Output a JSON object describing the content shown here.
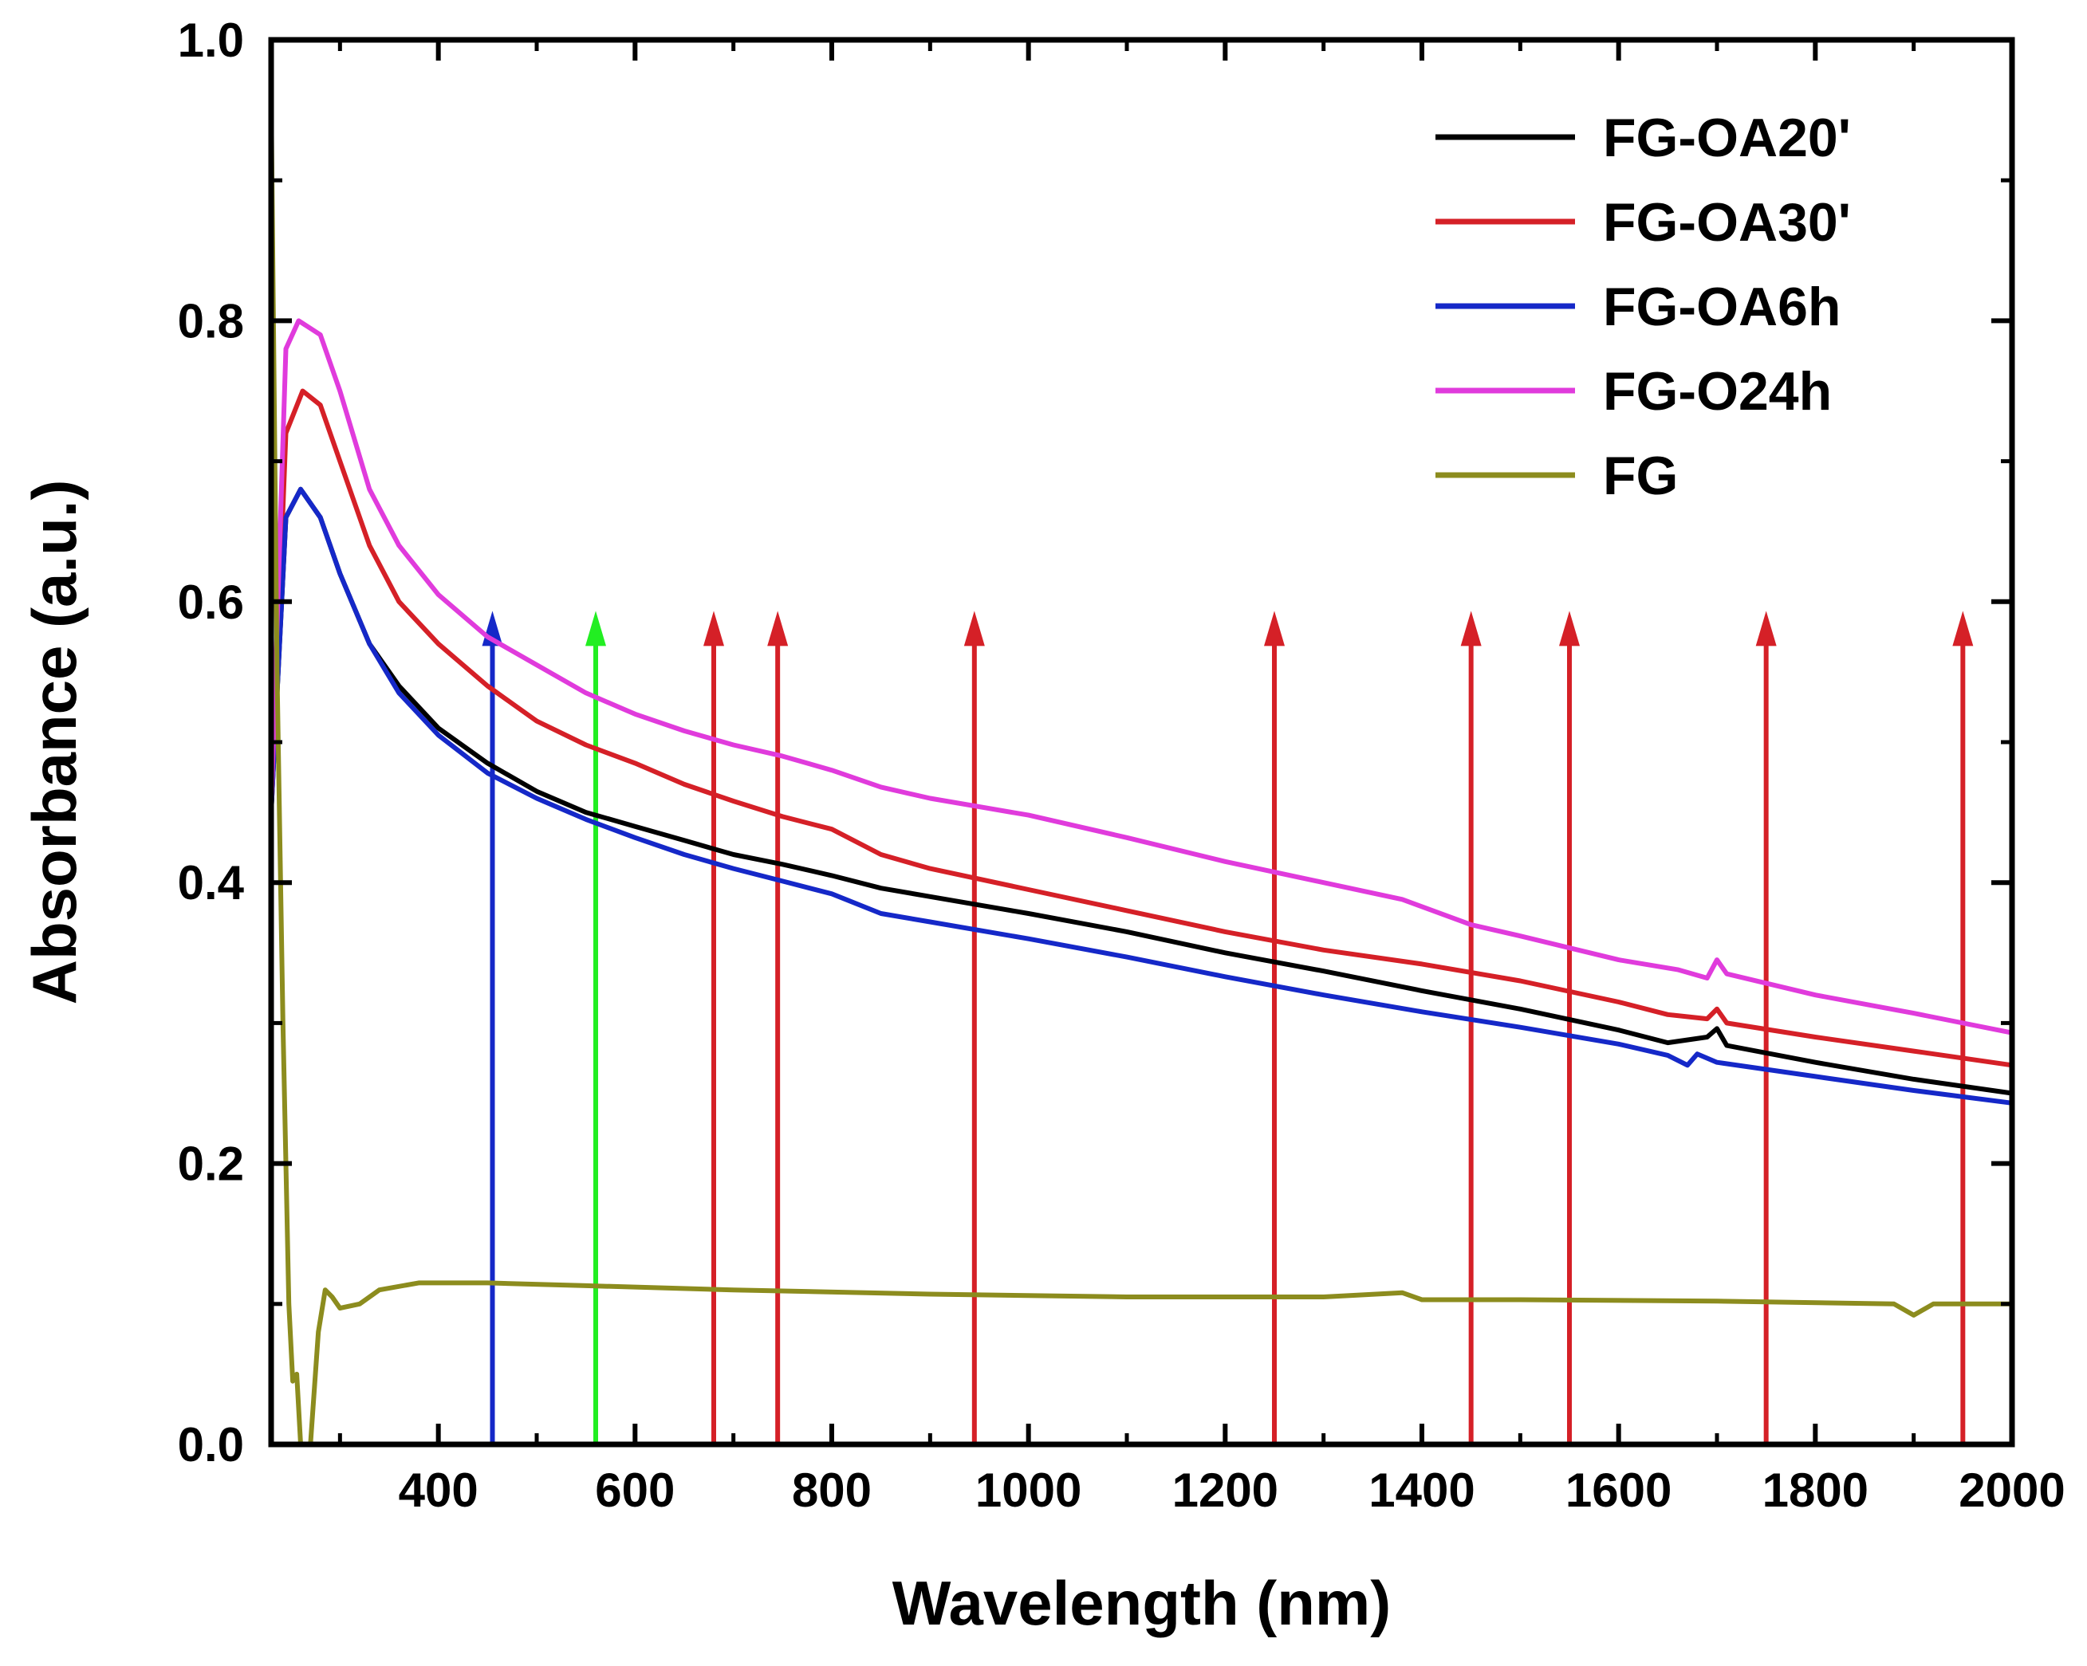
{
  "chart_data": {
    "type": "line",
    "title": "",
    "xlabel": "Wavelength (nm)",
    "ylabel": "Absorbance (a.u.)",
    "xlim": [
      230,
      2000
    ],
    "ylim": [
      0.0,
      1.0
    ],
    "x_ticks": [
      400,
      600,
      800,
      1000,
      1200,
      1400,
      1600,
      1800,
      2000
    ],
    "x_tick_labels": [
      "400",
      "600",
      "800",
      "1000",
      "1200",
      "1400",
      "1600",
      "1800",
      "2000"
    ],
    "y_ticks": [
      0.0,
      0.2,
      0.4,
      0.6,
      0.8,
      1.0
    ],
    "y_tick_labels": [
      "0.0",
      "0.2",
      "0.4",
      "0.6",
      "0.8",
      "1.0"
    ],
    "grid": false,
    "legend_position": "top-right",
    "series": [
      {
        "name": "FG-OA20'",
        "color": "#000000",
        "x": [
          230,
          245,
          260,
          280,
          300,
          330,
          360,
          400,
          450,
          500,
          550,
          600,
          650,
          700,
          750,
          800,
          850,
          900,
          1000,
          1100,
          1200,
          1300,
          1400,
          1500,
          1600,
          1650,
          1690,
          1700,
          1710,
          1800,
          1900,
          2000
        ],
        "y": [
          0.45,
          0.66,
          0.68,
          0.66,
          0.62,
          0.57,
          0.54,
          0.51,
          0.485,
          0.465,
          0.45,
          0.44,
          0.43,
          0.42,
          0.413,
          0.405,
          0.396,
          0.39,
          0.378,
          0.365,
          0.35,
          0.337,
          0.323,
          0.31,
          0.295,
          0.286,
          0.29,
          0.296,
          0.284,
          0.272,
          0.26,
          0.25
        ]
      },
      {
        "name": "FG-OA30'",
        "color": "#d52027",
        "x": [
          230,
          245,
          262,
          280,
          300,
          330,
          360,
          400,
          450,
          500,
          550,
          600,
          650,
          700,
          750,
          800,
          850,
          900,
          1000,
          1100,
          1200,
          1300,
          1400,
          1500,
          1600,
          1650,
          1690,
          1700,
          1710,
          1800,
          1900,
          2000
        ],
        "y": [
          0.45,
          0.72,
          0.75,
          0.74,
          0.7,
          0.64,
          0.6,
          0.57,
          0.54,
          0.515,
          0.498,
          0.485,
          0.47,
          0.458,
          0.447,
          0.438,
          0.42,
          0.41,
          0.395,
          0.38,
          0.365,
          0.352,
          0.342,
          0.33,
          0.315,
          0.306,
          0.303,
          0.31,
          0.3,
          0.29,
          0.28,
          0.27
        ]
      },
      {
        "name": "FG-OA6h",
        "color": "#1528c8",
        "x": [
          230,
          245,
          260,
          280,
          300,
          330,
          360,
          400,
          450,
          500,
          550,
          600,
          650,
          700,
          750,
          800,
          850,
          900,
          1000,
          1100,
          1200,
          1300,
          1400,
          1500,
          1600,
          1650,
          1670,
          1680,
          1700,
          1800,
          1900,
          2000
        ],
        "y": [
          0.45,
          0.66,
          0.68,
          0.66,
          0.62,
          0.57,
          0.535,
          0.505,
          0.478,
          0.46,
          0.445,
          0.432,
          0.42,
          0.41,
          0.401,
          0.392,
          0.378,
          0.372,
          0.36,
          0.347,
          0.333,
          0.32,
          0.308,
          0.297,
          0.285,
          0.277,
          0.27,
          0.278,
          0.272,
          0.262,
          0.252,
          0.243
        ]
      },
      {
        "name": "FG-O24h",
        "color": "#e03bdc",
        "x": [
          230,
          245,
          258,
          280,
          300,
          330,
          360,
          400,
          450,
          500,
          550,
          600,
          650,
          700,
          750,
          800,
          850,
          900,
          1000,
          1100,
          1200,
          1300,
          1380,
          1450,
          1500,
          1600,
          1660,
          1690,
          1700,
          1710,
          1800,
          1900,
          2000
        ],
        "y": [
          0.45,
          0.78,
          0.8,
          0.79,
          0.75,
          0.68,
          0.64,
          0.605,
          0.575,
          0.555,
          0.535,
          0.52,
          0.508,
          0.498,
          0.49,
          0.48,
          0.468,
          0.46,
          0.448,
          0.432,
          0.415,
          0.4,
          0.388,
          0.37,
          0.362,
          0.345,
          0.338,
          0.332,
          0.345,
          0.335,
          0.32,
          0.307,
          0.293
        ]
      },
      {
        "name": "FG",
        "color": "#8c8c1e",
        "x": [
          230,
          236,
          242,
          248,
          252,
          256,
          260,
          265,
          270,
          278,
          285,
          292,
          300,
          320,
          340,
          380,
          450,
          550,
          700,
          900,
          1100,
          1300,
          1380,
          1400,
          1500,
          1700,
          1880,
          1900,
          1920,
          2000
        ],
        "y": [
          0.96,
          0.55,
          0.3,
          0.1,
          0.045,
          0.05,
          0.0,
          0.0,
          0.0,
          0.08,
          0.11,
          0.105,
          0.097,
          0.1,
          0.11,
          0.115,
          0.115,
          0.113,
          0.11,
          0.107,
          0.105,
          0.105,
          0.108,
          0.103,
          0.103,
          0.102,
          0.1,
          0.092,
          0.1,
          0.1
        ]
      }
    ],
    "annotations": [
      {
        "type": "arrow",
        "x": 455,
        "y_start": 0.0,
        "y_end": 0.59,
        "color": "#1528c8"
      },
      {
        "type": "arrow",
        "x": 560,
        "y_start": 0.0,
        "y_end": 0.59,
        "color": "#22ee22"
      },
      {
        "type": "arrow",
        "x": 680,
        "y_start": 0.0,
        "y_end": 0.59,
        "color": "#d52027"
      },
      {
        "type": "arrow",
        "x": 745,
        "y_start": 0.0,
        "y_end": 0.59,
        "color": "#d52027"
      },
      {
        "type": "arrow",
        "x": 945,
        "y_start": 0.0,
        "y_end": 0.59,
        "color": "#d52027"
      },
      {
        "type": "arrow",
        "x": 1250,
        "y_start": 0.0,
        "y_end": 0.59,
        "color": "#d52027"
      },
      {
        "type": "arrow",
        "x": 1450,
        "y_start": 0.0,
        "y_end": 0.59,
        "color": "#d52027"
      },
      {
        "type": "arrow",
        "x": 1550,
        "y_start": 0.0,
        "y_end": 0.59,
        "color": "#d52027"
      },
      {
        "type": "arrow",
        "x": 1750,
        "y_start": 0.0,
        "y_end": 0.59,
        "color": "#d52027"
      },
      {
        "type": "arrow",
        "x": 1950,
        "y_start": 0.0,
        "y_end": 0.59,
        "color": "#d52027"
      }
    ]
  }
}
